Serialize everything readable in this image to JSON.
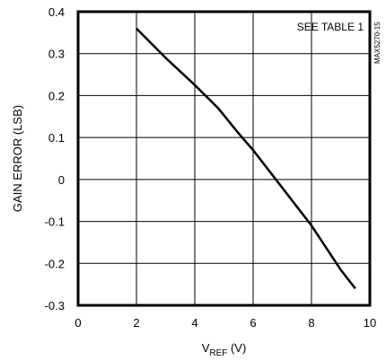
{
  "chart_data": {
    "type": "line",
    "title": "",
    "ylabel": "GAIN ERROR (LSB)",
    "xlabel_main": "V",
    "xlabel_sub": "REF",
    "xlabel_unit": " (V)",
    "annotation": "SEE TABLE 1",
    "part_number": "MAX5270-15",
    "xlim": [
      0,
      10
    ],
    "ylim": [
      -0.3,
      0.4
    ],
    "x_ticks": [
      0,
      2,
      4,
      6,
      8,
      10
    ],
    "x_tick_labels": [
      "0",
      "2",
      "4",
      "6",
      "8",
      "10"
    ],
    "y_ticks": [
      0.4,
      0.3,
      0.2,
      0.1,
      0,
      -0.1,
      -0.2,
      -0.3
    ],
    "y_tick_labels": [
      "0.4",
      "0.3",
      "0.2",
      "0.1",
      "0",
      "-0.1",
      "-0.2",
      "-0.3"
    ],
    "grid": true,
    "series": [
      {
        "x": [
          2.0,
          3.0,
          4.0,
          4.8,
          5.5,
          6.0,
          7.0,
          8.0,
          9.0,
          9.5
        ],
        "y": [
          0.36,
          0.29,
          0.225,
          0.17,
          0.11,
          0.07,
          -0.02,
          -0.11,
          -0.215,
          -0.26
        ]
      }
    ]
  }
}
